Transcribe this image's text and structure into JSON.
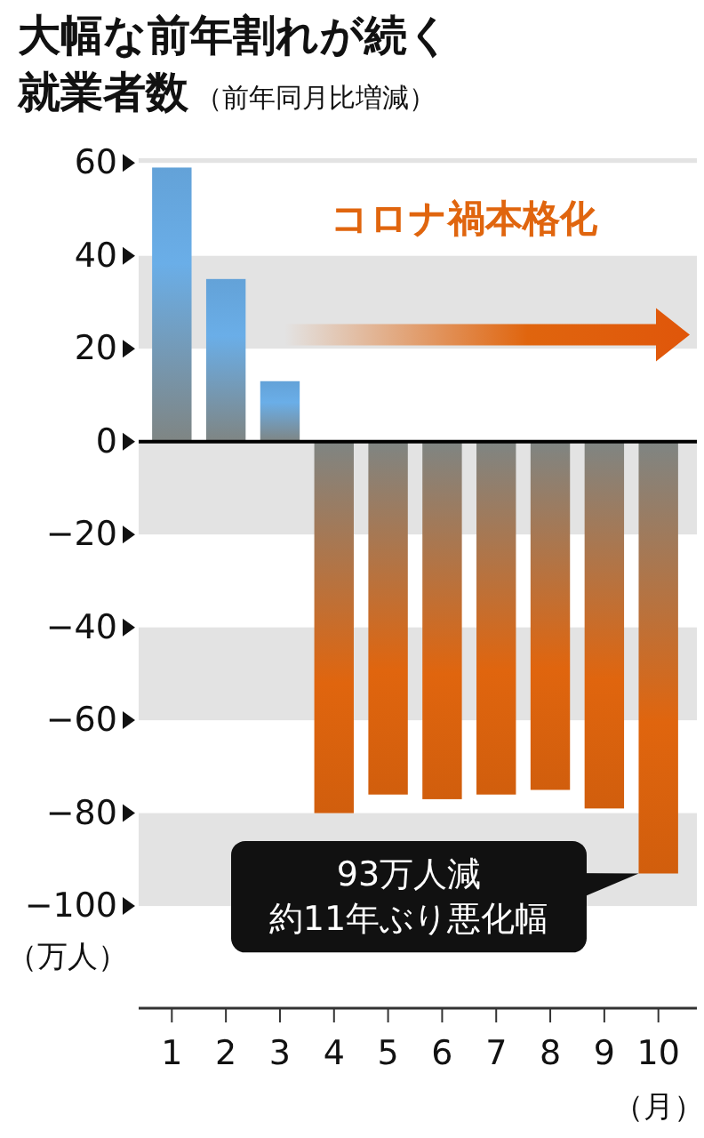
{
  "chart_data": {
    "type": "bar",
    "title": "大幅な前年割れが続く就業者数",
    "subtitle": "（前年同月比増減）",
    "ylabel": "（万人）",
    "xlabel": "（月）",
    "categories": [
      "1",
      "2",
      "3",
      "4",
      "5",
      "6",
      "7",
      "8",
      "9",
      "10"
    ],
    "values": [
      59,
      35,
      13,
      -80,
      -76,
      -77,
      -76,
      -75,
      -79,
      -93
    ],
    "colors": [
      "#6aaee8",
      "#6aaee8",
      "#6aaee8",
      "#e0650e",
      "#e0650e",
      "#e0650e",
      "#e0650e",
      "#e0650e",
      "#e0650e",
      "#e0650e"
    ],
    "ylim": [
      -122,
      61
    ],
    "yticks": [
      60,
      40,
      20,
      0,
      -20,
      -40,
      -60,
      -80,
      -100
    ],
    "grid": "y",
    "annotations": [
      "コロナ禍本格化",
      "93万人減",
      "約11年ぶり悪化幅"
    ]
  }
}
